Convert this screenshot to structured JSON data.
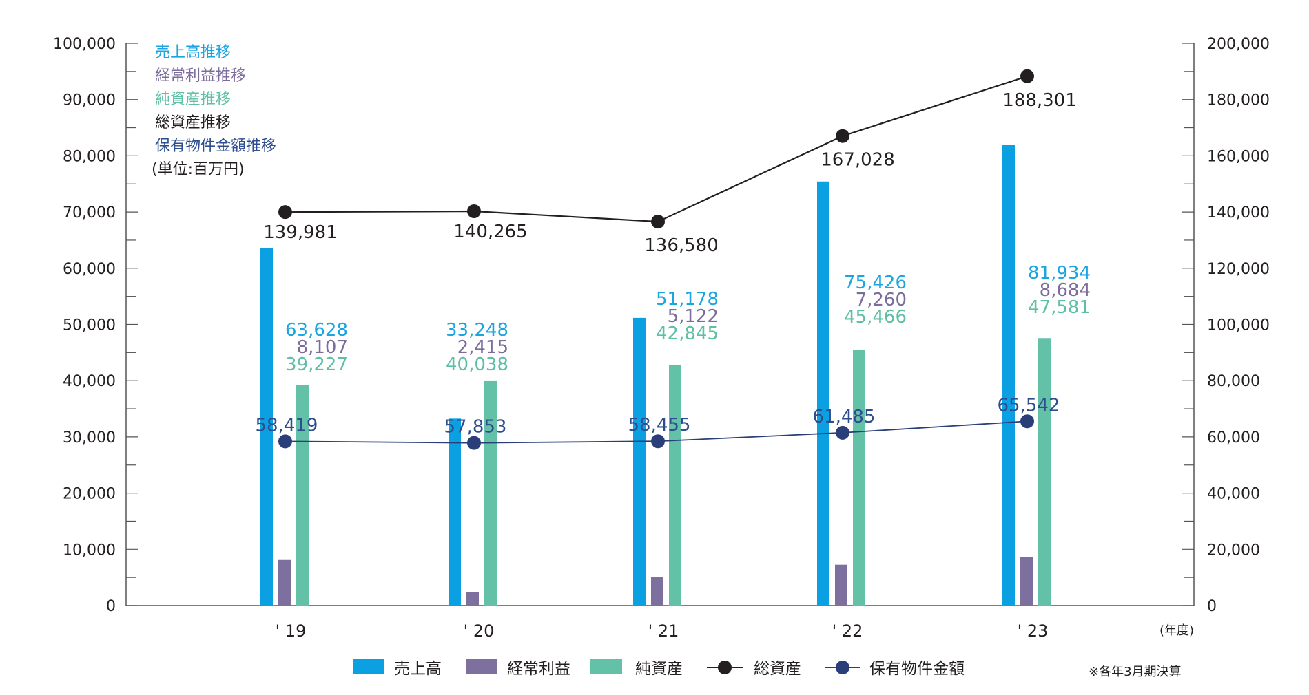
{
  "chart_data": {
    "type": "bar",
    "categories": [
      "' 19",
      "' 20",
      "' 21",
      "' 22",
      "' 23"
    ],
    "xunit": "(年度)",
    "y_left": {
      "ticks": [
        "0",
        "10,000",
        "20,000",
        "30,000",
        "40,000",
        "50,000",
        "60,000",
        "70,000",
        "80,000",
        "90,000",
        "100,000"
      ],
      "range": [
        0,
        100000
      ]
    },
    "y_right": {
      "ticks": [
        "0",
        "20,000",
        "40,000",
        "60,000",
        "80,000",
        "100,000",
        "120,000",
        "140,000",
        "160,000",
        "180,000",
        "200,000"
      ],
      "range": [
        0,
        200000
      ]
    },
    "series": [
      {
        "key": "sales",
        "name": "売上高",
        "title": "売上高推移",
        "type": "bar",
        "axis": "left",
        "color": "#0aa0e2",
        "label_color": "#1aa5e0",
        "values": [
          63628,
          33248,
          51178,
          75426,
          81934
        ],
        "labels": [
          "63,628",
          "33,248",
          "51,178",
          "75,426",
          "81,934"
        ]
      },
      {
        "key": "ordinary",
        "name": "経常利益",
        "title": "経常利益推移",
        "type": "bar",
        "axis": "left",
        "color": "#7d6f9e",
        "label_color": "#7b6c9c",
        "values": [
          8107,
          2415,
          5122,
          7260,
          8684
        ],
        "labels": [
          "8,107",
          "2,415",
          "5,122",
          "7,260",
          "8,684"
        ]
      },
      {
        "key": "net_assets",
        "name": "純資産",
        "title": "純資産推移",
        "type": "bar",
        "axis": "left",
        "color": "#63c1a8",
        "label_color": "#5fbfa5",
        "values": [
          39227,
          40038,
          42845,
          45466,
          47581
        ],
        "labels": [
          "39,227",
          "40,038",
          "42,845",
          "45,466",
          "47,581"
        ]
      },
      {
        "key": "total_assets",
        "name": "総資産",
        "title": "総資産推移",
        "type": "line",
        "axis": "right",
        "color": "#231f20",
        "label_color": "#231f20",
        "values": [
          139981,
          140265,
          136580,
          167028,
          188301
        ],
        "labels": [
          "139,981",
          "140,265",
          "136,580",
          "167,028",
          "188,301"
        ]
      },
      {
        "key": "property",
        "name": "保有物件金額",
        "title": "保有物件金額推移",
        "type": "line",
        "axis": "right",
        "color": "#2a3f7a",
        "label_color": "#2e4d8f",
        "values": [
          58419,
          57853,
          58455,
          61485,
          65542
        ],
        "labels": [
          "58,419",
          "57,853",
          "58,455",
          "61,485",
          "65,542"
        ]
      }
    ],
    "unit_note": "(単位:百万円)",
    "footnote": "※各年3月期決算",
    "legend_position": "bottom"
  }
}
